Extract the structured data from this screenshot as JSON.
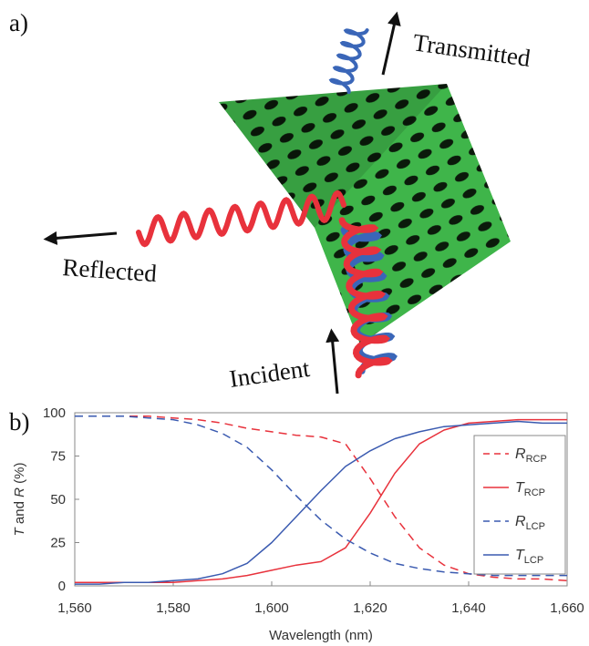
{
  "panel_a": {
    "label": "a)",
    "transmitted": "Transmitted",
    "reflected": "Reflected",
    "incident": "Incident"
  },
  "panel_b": {
    "label": "b)"
  },
  "chart_data": {
    "type": "line",
    "x_label": "Wavelength (nm)",
    "y_label": "T and R (%)",
    "x": [
      1560,
      1565,
      1570,
      1575,
      1580,
      1585,
      1590,
      1595,
      1600,
      1605,
      1610,
      1615,
      1620,
      1625,
      1630,
      1635,
      1640,
      1645,
      1650,
      1655,
      1660
    ],
    "xlim": [
      1560,
      1660
    ],
    "xticks": [
      {
        "value": 1560,
        "label": "1,560"
      },
      {
        "value": 1580,
        "label": "1,580"
      },
      {
        "value": 1600,
        "label": "1,600"
      },
      {
        "value": 1620,
        "label": "1,620"
      },
      {
        "value": 1640,
        "label": "1,640"
      },
      {
        "value": 1660,
        "label": "1,660"
      }
    ],
    "ylim": [
      0,
      100
    ],
    "yticks": [
      0,
      25,
      50,
      75,
      100
    ],
    "grid": false,
    "legend": "right",
    "series": [
      {
        "name": "RRCP",
        "color": "#e8323c",
        "linestyle": "dashed",
        "values": [
          98,
          98,
          98,
          98,
          97,
          96,
          94,
          91,
          89,
          87,
          86,
          82,
          62,
          40,
          22,
          12,
          7,
          5,
          4,
          4,
          3
        ]
      },
      {
        "name": "TRCP",
        "color": "#e8323c",
        "linestyle": "solid",
        "values": [
          2,
          2,
          2,
          2,
          2,
          3,
          4,
          6,
          9,
          12,
          14,
          22,
          42,
          65,
          82,
          90,
          94,
          95,
          96,
          96,
          96
        ]
      },
      {
        "name": "RLCP",
        "color": "#3a5ab0",
        "linestyle": "dashed",
        "values": [
          98,
          98,
          98,
          97,
          96,
          93,
          88,
          80,
          67,
          52,
          38,
          27,
          19,
          13,
          10,
          8,
          7,
          6,
          6,
          6,
          6
        ]
      },
      {
        "name": "TLCP",
        "color": "#3a5ab0",
        "linestyle": "solid",
        "values": [
          1,
          1,
          2,
          2,
          3,
          4,
          7,
          13,
          25,
          40,
          55,
          69,
          78,
          85,
          89,
          92,
          93,
          94,
          95,
          94,
          94
        ]
      }
    ]
  }
}
